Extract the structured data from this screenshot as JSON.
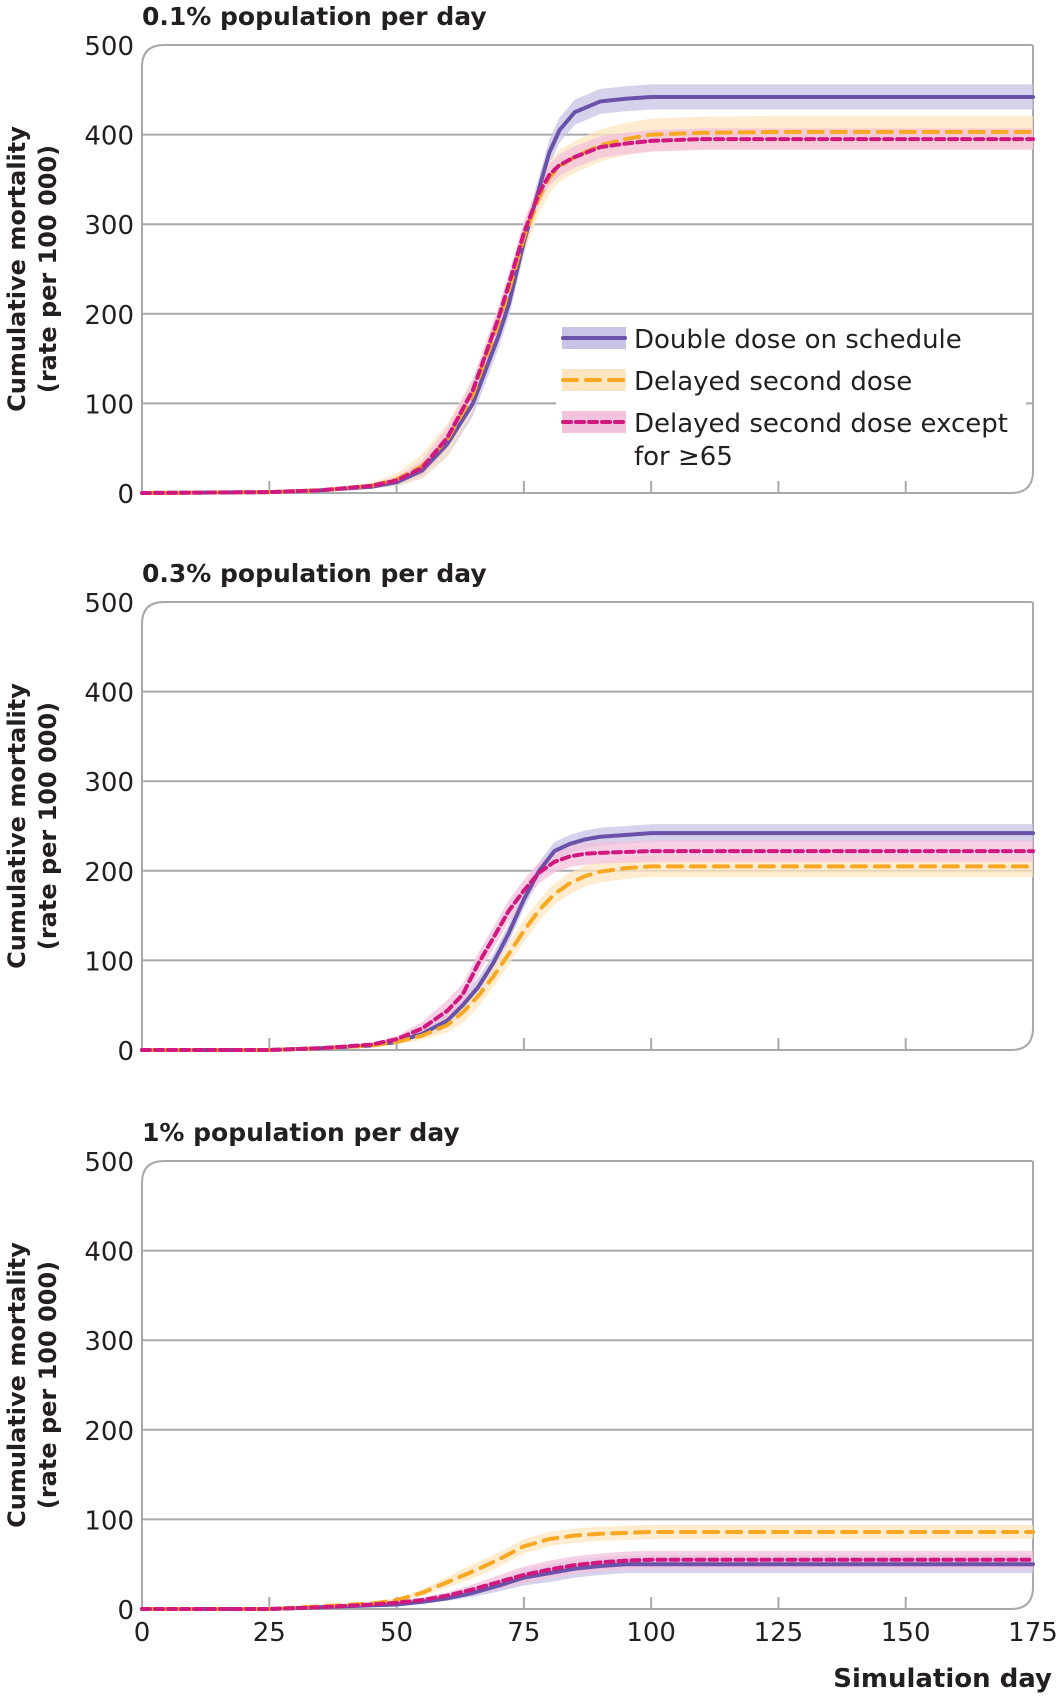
{
  "chart_data": {
    "type": "line",
    "xlabel": "Simulation day",
    "ylabel_line1": "Cumulative mortality",
    "ylabel_line2": "(rate per 100 000)",
    "xlim": [
      0,
      175
    ],
    "ylim": [
      0,
      500
    ],
    "xticks": [
      0,
      25,
      50,
      75,
      100,
      125,
      150,
      175
    ],
    "yticks": [
      0,
      100,
      200,
      300,
      400,
      500
    ],
    "grid": true,
    "legend": {
      "placement": "right (inside top panel)",
      "entries": [
        {
          "label": "Double dose on schedule",
          "series": "double"
        },
        {
          "label": "Delayed second dose",
          "series": "delayed"
        },
        {
          "label_lines": [
            "Delayed second dose except",
            "for ≥65"
          ],
          "series": "except65"
        }
      ]
    },
    "series_styles": {
      "double": {
        "name": "Double dose on schedule",
        "color": "#6a52a8",
        "band_color": "#c9c3e6",
        "dash": "solid"
      },
      "delayed": {
        "name": "Delayed second dose",
        "color": "#f7a823",
        "band_color": "#fde5c0",
        "dash": "long-dash"
      },
      "except65": {
        "name": "Delayed second dose except for ≥65",
        "color": "#d0187f",
        "band_color": "#f3c2dc",
        "dash": "short-dash"
      }
    },
    "panels": [
      {
        "title": "0.1% population per day",
        "x": [
          0,
          25,
          35,
          45,
          50,
          55,
          60,
          65,
          70,
          72,
          75,
          78,
          80,
          82,
          85,
          90,
          95,
          100,
          110,
          125,
          150,
          175
        ],
        "series": [
          {
            "key": "double",
            "values": [
              0,
              1,
              3,
              7,
              12,
              25,
              55,
              100,
              175,
              210,
              280,
              340,
              380,
              405,
              425,
              437,
              440,
              442,
              442,
              442,
              442,
              442
            ],
            "band": 14
          },
          {
            "key": "delayed",
            "values": [
              0,
              1,
              3,
              8,
              15,
              30,
              60,
              110,
              190,
              225,
              285,
              330,
              352,
              365,
              375,
              388,
              395,
              400,
              402,
              403,
              403,
              403
            ],
            "band": 18
          },
          {
            "key": "except65",
            "values": [
              0,
              1,
              3,
              8,
              14,
              28,
              62,
              115,
              195,
              232,
              290,
              335,
              355,
              366,
              375,
              386,
              390,
              393,
              395,
              395,
              395,
              395
            ],
            "band": 12
          }
        ]
      },
      {
        "title": "0.3% population per day",
        "x": [
          0,
          25,
          35,
          45,
          50,
          55,
          60,
          63,
          66,
          69,
          72,
          75,
          78,
          81,
          84,
          87,
          90,
          95,
          100,
          110,
          125,
          150,
          175
        ],
        "series": [
          {
            "key": "double",
            "values": [
              0,
              0,
              2,
              5,
              9,
              18,
              33,
              50,
              70,
              97,
              130,
              168,
              200,
              222,
              230,
              235,
              238,
              240,
              242,
              242,
              242,
              242,
              242
            ],
            "band": 10
          },
          {
            "key": "delayed",
            "values": [
              0,
              0,
              2,
              5,
              9,
              16,
              28,
              42,
              60,
              82,
              107,
              133,
              156,
              174,
              186,
              194,
              199,
              203,
              205,
              205,
              205,
              205,
              205
            ],
            "band": 12
          },
          {
            "key": "except65",
            "values": [
              0,
              0,
              2,
              6,
              12,
              24,
              44,
              62,
              96,
              125,
              155,
              178,
              198,
              210,
              216,
              219,
              220,
              221,
              222,
              222,
              222,
              222,
              222
            ],
            "band": 12
          }
        ]
      },
      {
        "title": "1% population per day",
        "x": [
          0,
          25,
          35,
          45,
          50,
          55,
          60,
          65,
          70,
          75,
          80,
          85,
          90,
          95,
          100,
          110,
          125,
          150,
          175
        ],
        "series": [
          {
            "key": "double",
            "values": [
              0,
              0,
              2,
              4,
              5,
              8,
              12,
              18,
              26,
              35,
              40,
              45,
              48,
              50,
              50,
              50,
              50,
              50,
              50
            ],
            "band": 10
          },
          {
            "key": "delayed",
            "values": [
              0,
              0,
              3,
              6,
              10,
              18,
              30,
              42,
              55,
              70,
              78,
              82,
              84,
              85,
              86,
              86,
              86,
              86,
              86
            ],
            "band": 8
          },
          {
            "key": "except65",
            "values": [
              0,
              0,
              2,
              5,
              7,
              10,
              15,
              22,
              30,
              38,
              44,
              49,
              52,
              54,
              55,
              55,
              55,
              55,
              55
            ],
            "band": 10
          }
        ]
      }
    ]
  }
}
